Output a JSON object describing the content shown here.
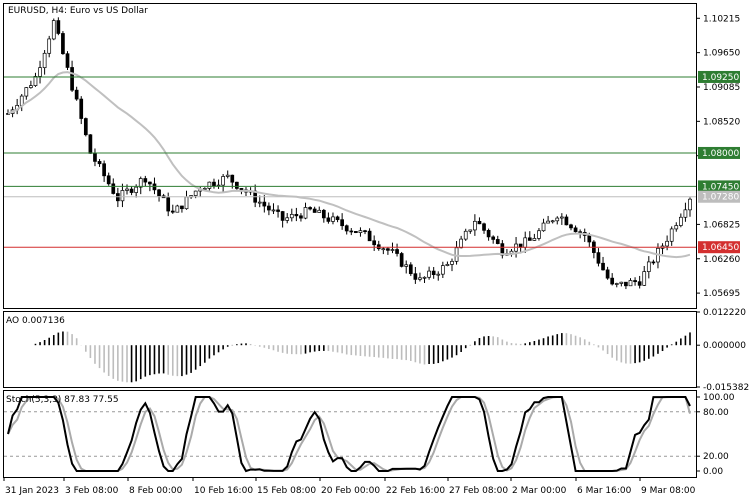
{
  "header": {
    "symbol_label": "EURUSD, H4:  Euro vs US Dollar"
  },
  "price_axis": {
    "ticks": [
      "1.10215",
      "1.09650",
      "1.09085",
      "1.08520",
      "1.07955",
      "1.06825",
      "1.06260",
      "1.05695"
    ],
    "tags": [
      {
        "label": "1.09250",
        "bg": "#2e7d32",
        "fg": "#ffffff"
      },
      {
        "label": "1.08000",
        "bg": "#2e7d32",
        "fg": "#ffffff"
      },
      {
        "label": "1.07450",
        "bg": "#2e7d32",
        "fg": "#ffffff"
      },
      {
        "label": "1.07280",
        "bg": "#bdbdbd",
        "fg": "#ffffff"
      },
      {
        "label": "1.06450",
        "bg": "#d32f2f",
        "fg": "#ffffff"
      }
    ]
  },
  "ao_panel": {
    "label": "AO 0.007136",
    "ticks": [
      "0.012220",
      "0.000000",
      "-0.015382"
    ]
  },
  "stoch_panel": {
    "label": "Stoch(5,3,3) 87.83 77.55",
    "ticks": [
      "100.00",
      "80.00",
      "20.00",
      "0.00"
    ]
  },
  "time_axis": {
    "labels": [
      "31 Jan 2023",
      "3 Feb 08:00",
      "8 Feb 00:00",
      "10 Feb 16:00",
      "15 Feb 08:00",
      "20 Feb 00:00",
      "22 Feb 16:00",
      "27 Feb 08:00",
      "2 Mar 00:00",
      "6 Mar 16:00",
      "9 Mar 08:00"
    ]
  },
  "colors": {
    "support_resistance_green": "#2e7d32",
    "support_red": "#d32f2f",
    "moving_average": "#c0c0c0",
    "candle": "#000000",
    "ao_up": "#000000",
    "ao_down": "#bdbdbd",
    "stoch_main": "#000000",
    "stoch_signal": "#aaaaaa"
  },
  "chart_data": {
    "type": "line",
    "title": "EURUSD, H4: Euro vs US Dollar",
    "horizontal_levels": [
      1.0925,
      1.08,
      1.0745,
      1.0728,
      1.0645
    ],
    "price_series": {
      "name": "EURUSD",
      "x": [
        "31 Jan 2023",
        "3 Feb 08:00",
        "8 Feb 00:00",
        "10 Feb 16:00",
        "15 Feb 08:00",
        "20 Feb 00:00",
        "22 Feb 16:00",
        "27 Feb 08:00",
        "2 Mar 00:00",
        "6 Mar 16:00",
        "9 Mar 08:00"
      ],
      "close": [
        1.0865,
        1.1015,
        1.0725,
        1.0675,
        1.0705,
        1.0695,
        1.0585,
        1.0615,
        1.0665,
        1.0575,
        1.0725
      ]
    },
    "ylim": [
      1.0545,
      1.1045
    ],
    "ao_ylim": [
      -0.015382,
      0.01222
    ],
    "stoch_ylim": [
      0,
      100
    ],
    "stoch_values": {
      "main": 87.83,
      "signal": 77.55
    }
  }
}
